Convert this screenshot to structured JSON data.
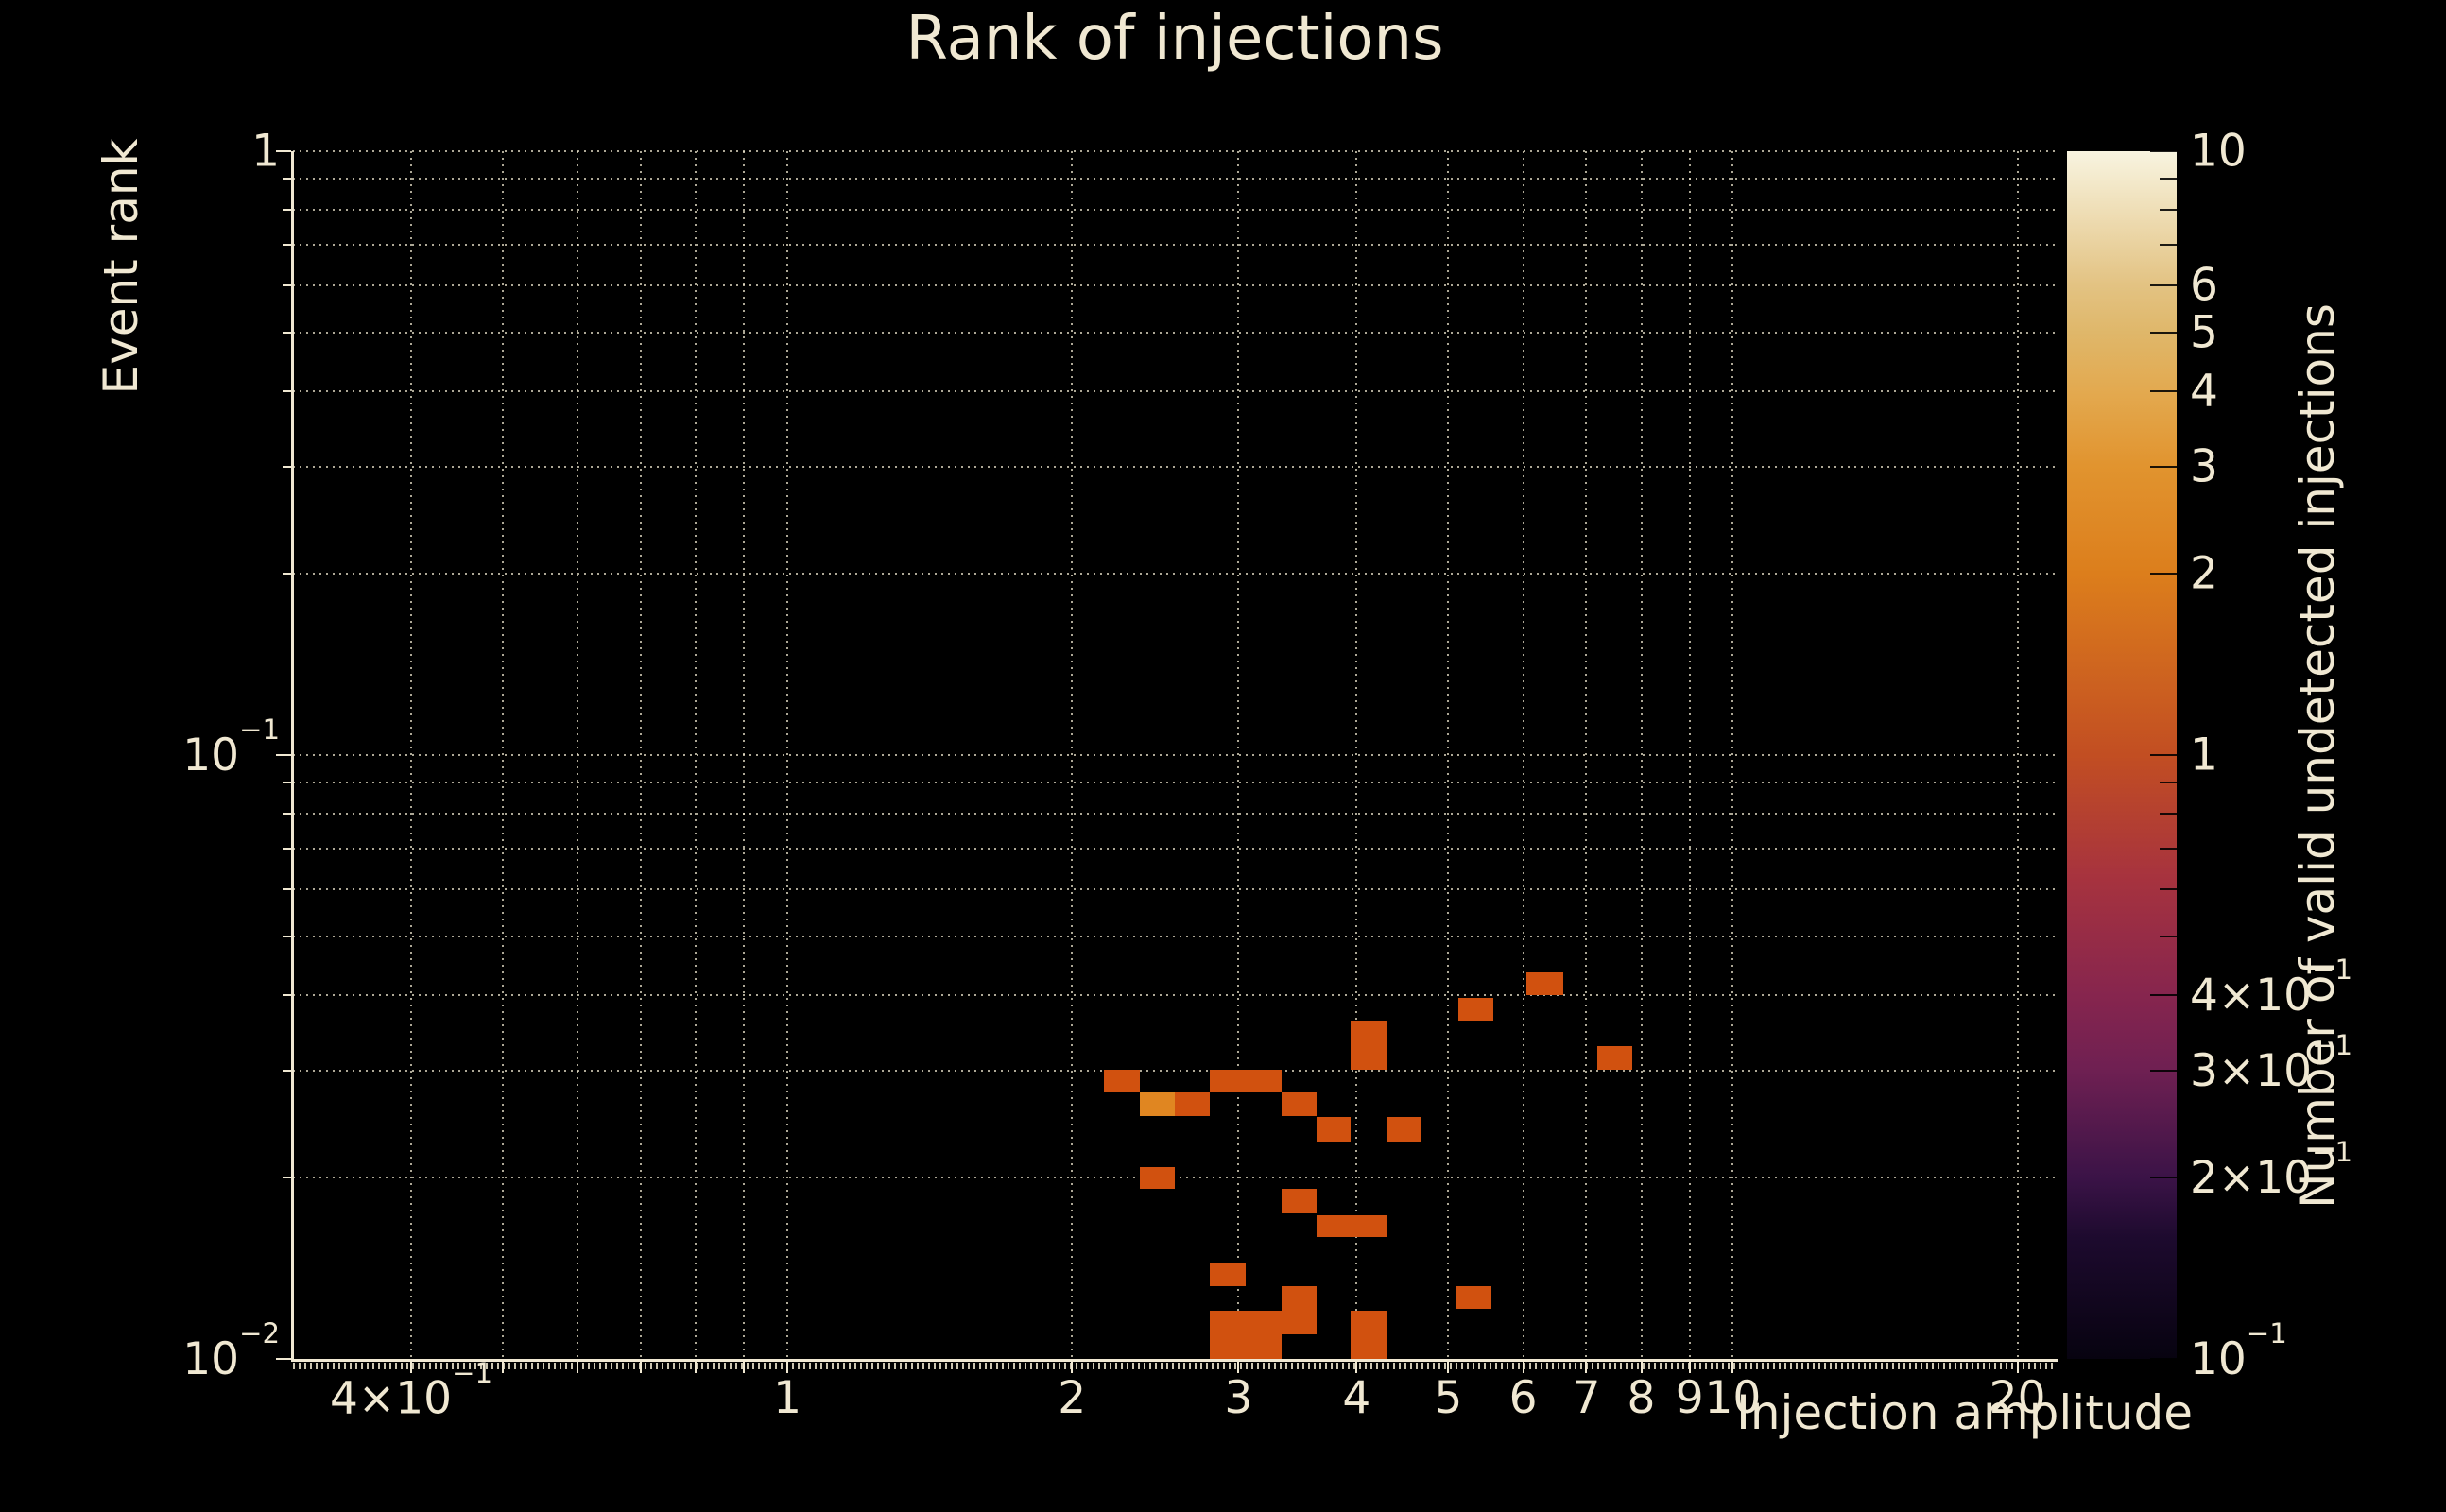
{
  "colors": {
    "background": "#000000",
    "text": "#f0e8d2",
    "grid": "rgba(240,232,208,0.72)",
    "cell_count_1": "#d1510f",
    "cell_count_2": "#e08621"
  },
  "chart_data": {
    "type": "heatmap",
    "title": "Rank of injections",
    "xlabel": "Injection amplitude",
    "ylabel": "Event rank",
    "colorbar_label": "Number of valid undetected injections",
    "xscale": "log",
    "yscale": "log",
    "zscale": "log",
    "xlim": [
      0.3,
      22
    ],
    "ylim": [
      0.01,
      1
    ],
    "zlim": [
      0.1,
      10
    ],
    "grid": true,
    "x_gridlines": [
      0.4,
      0.5,
      0.6,
      0.7,
      0.8,
      0.9,
      1,
      2,
      3,
      4,
      5,
      6,
      7,
      8,
      9,
      10,
      20
    ],
    "y_gridlines": [
      1,
      0.9,
      0.8,
      0.7,
      0.6,
      0.5,
      0.4,
      0.3,
      0.2,
      0.1,
      0.09,
      0.08,
      0.07,
      0.06,
      0.05,
      0.04,
      0.03,
      0.02
    ],
    "x_ticks": [
      {
        "v": 0.4,
        "t": "4×10",
        "s": "−1"
      },
      {
        "v": 1,
        "t": "1"
      },
      {
        "v": 2,
        "t": "2"
      },
      {
        "v": 3,
        "t": "3"
      },
      {
        "v": 4,
        "t": "4"
      },
      {
        "v": 5,
        "t": "5"
      },
      {
        "v": 6,
        "t": "6"
      },
      {
        "v": 7,
        "t": "7"
      },
      {
        "v": 8,
        "t": "8"
      },
      {
        "v": 9,
        "t": "9"
      },
      {
        "v": 10,
        "t": "10"
      },
      {
        "v": 20,
        "t": "20"
      }
    ],
    "y_ticks": [
      {
        "v": 1,
        "t": "1"
      },
      {
        "v": 0.1,
        "t": "10",
        "s": "−1"
      },
      {
        "v": 0.01,
        "t": "10",
        "s": "−2"
      }
    ],
    "colorbar_ticks": [
      {
        "v": 10,
        "t": "10"
      },
      {
        "v": 6,
        "t": "6"
      },
      {
        "v": 5,
        "t": "5"
      },
      {
        "v": 4,
        "t": "4"
      },
      {
        "v": 3,
        "t": "3"
      },
      {
        "v": 2,
        "t": "2"
      },
      {
        "v": 1,
        "t": "1"
      },
      {
        "v": 0.4,
        "t": "4×10",
        "s": "−1"
      },
      {
        "v": 0.3,
        "t": "3×10",
        "s": "−1"
      },
      {
        "v": 0.2,
        "t": "2×10",
        "s": "−1"
      },
      {
        "v": 0.1,
        "t": "10",
        "s": "−1"
      }
    ],
    "colorbar_minor_ticks": [
      9,
      8,
      7,
      0.9,
      0.8,
      0.7,
      0.6,
      0.5
    ],
    "colormap_stops": [
      [
        0.0,
        "#070310"
      ],
      [
        0.1,
        "#1d0a2e"
      ],
      [
        0.15,
        "#3b1347"
      ],
      [
        0.24,
        "#6f2052"
      ],
      [
        0.3,
        "#86254e"
      ],
      [
        0.4,
        "#a7333e"
      ],
      [
        0.5,
        "#c24e22"
      ],
      [
        0.65,
        "#dc7e1c"
      ],
      [
        0.74,
        "#e1942f"
      ],
      [
        0.8,
        "#e3a94f"
      ],
      [
        0.85,
        "#dfb76a"
      ],
      [
        0.89,
        "#e3c383"
      ],
      [
        1.0,
        "#f8f4e0"
      ]
    ],
    "cells": [
      {
        "x0": 3.94,
        "x1": 4.3,
        "y0": 0.0301,
        "y1": 0.0363,
        "count": 1
      },
      {
        "x0": 5.12,
        "x1": 5.58,
        "y0": 0.0363,
        "y1": 0.0396,
        "count": 1
      },
      {
        "x0": 6.05,
        "x1": 6.61,
        "y0": 0.04,
        "y1": 0.0437,
        "count": 1
      },
      {
        "x0": 7.19,
        "x1": 7.83,
        "y0": 0.0301,
        "y1": 0.033,
        "count": 1
      },
      {
        "x0": 2.16,
        "x1": 2.36,
        "y0": 0.0276,
        "y1": 0.0301,
        "count": 1
      },
      {
        "x0": 2.8,
        "x1": 3.33,
        "y0": 0.0276,
        "y1": 0.0301,
        "count": 1
      },
      {
        "x0": 2.36,
        "x1": 2.57,
        "y0": 0.0252,
        "y1": 0.0276,
        "count": 2
      },
      {
        "x0": 2.57,
        "x1": 2.8,
        "y0": 0.0252,
        "y1": 0.0276,
        "count": 1
      },
      {
        "x0": 3.33,
        "x1": 3.63,
        "y0": 0.0252,
        "y1": 0.0276,
        "count": 1
      },
      {
        "x0": 3.63,
        "x1": 3.94,
        "y0": 0.0229,
        "y1": 0.0252,
        "count": 1
      },
      {
        "x0": 4.3,
        "x1": 4.68,
        "y0": 0.0229,
        "y1": 0.0252,
        "count": 1
      },
      {
        "x0": 2.36,
        "x1": 2.57,
        "y0": 0.0191,
        "y1": 0.0208,
        "count": 1
      },
      {
        "x0": 3.33,
        "x1": 3.63,
        "y0": 0.0174,
        "y1": 0.0191,
        "count": 1
      },
      {
        "x0": 3.63,
        "x1": 4.3,
        "y0": 0.0159,
        "y1": 0.0173,
        "count": 1
      },
      {
        "x0": 2.8,
        "x1": 3.05,
        "y0": 0.0132,
        "y1": 0.0144,
        "count": 1
      },
      {
        "x0": 3.33,
        "x1": 3.63,
        "y0": 0.011,
        "y1": 0.0132,
        "count": 1
      },
      {
        "x0": 2.8,
        "x1": 3.33,
        "y0": 0.01,
        "y1": 0.012,
        "count": 1
      },
      {
        "x0": 3.94,
        "x1": 4.3,
        "y0": 0.01,
        "y1": 0.012,
        "count": 1
      },
      {
        "x0": 5.1,
        "x1": 5.56,
        "y0": 0.0121,
        "y1": 0.0132,
        "count": 1
      }
    ]
  }
}
